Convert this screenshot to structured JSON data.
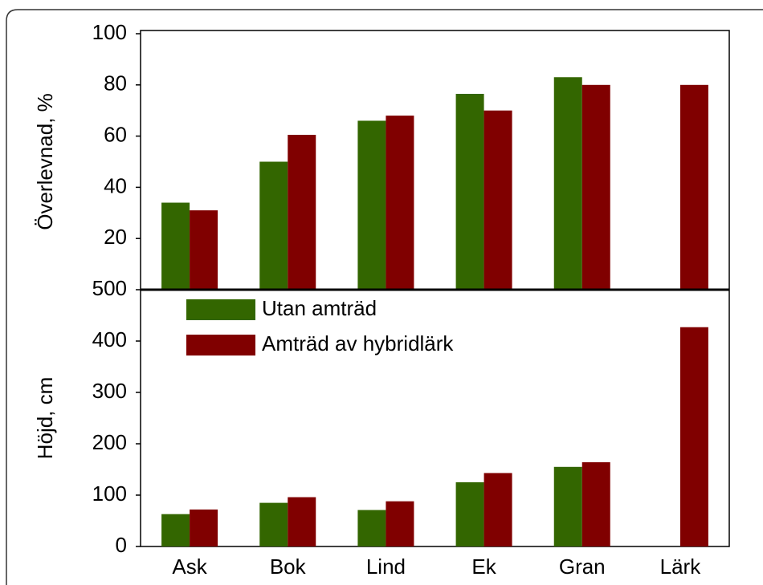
{
  "chart_data": [
    {
      "type": "bar",
      "ylabel": "Överlevnad, %",
      "ylim": [
        0,
        100
      ],
      "yticks": [
        20,
        40,
        60,
        80,
        100
      ],
      "series": [
        {
          "color": "#336600",
          "values": [
            34,
            50,
            66,
            76.5,
            83,
            null
          ]
        },
        {
          "color": "#800000",
          "values": [
            31,
            60.5,
            68,
            70,
            80,
            80
          ]
        }
      ]
    },
    {
      "type": "bar",
      "ylabel": "Höjd, cm",
      "ylim": [
        0,
        500
      ],
      "yticks": [
        0,
        100,
        200,
        300,
        400,
        500
      ],
      "categories": [
        "Ask",
        "Bok",
        "Lind",
        "Ek",
        "Gran",
        "Lärk"
      ],
      "series": [
        {
          "name": "Utan amträd",
          "color": "#336600",
          "values": [
            63,
            85,
            71,
            125,
            155,
            null
          ]
        },
        {
          "name": "Amträd av hybridlärk",
          "color": "#800000",
          "values": [
            72,
            96,
            88,
            143,
            164,
            427
          ]
        }
      ]
    }
  ]
}
